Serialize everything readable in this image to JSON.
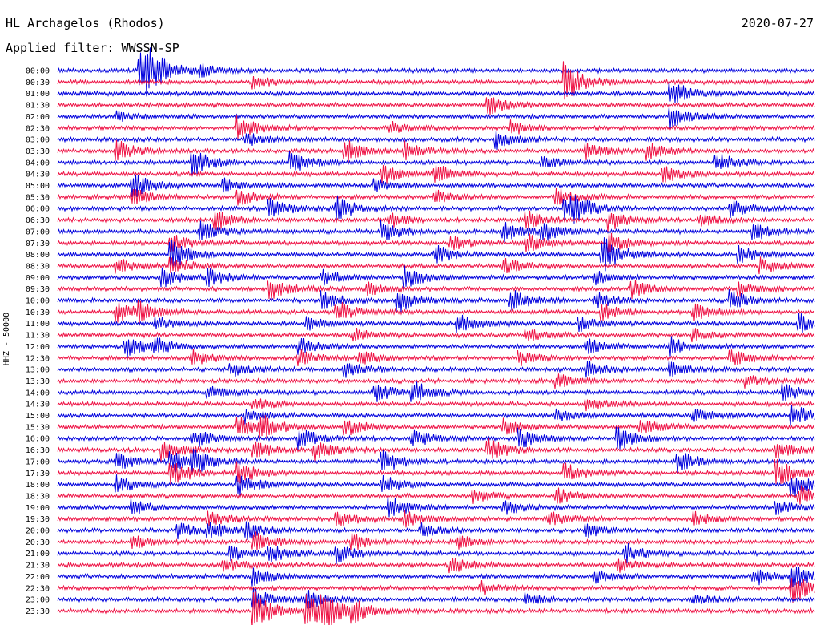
{
  "header": {
    "station": "HL Archagelos (Rhodos)",
    "date": "2020-07-27",
    "filter": "Applied filter: WWSSN-SP"
  },
  "chart_data": {
    "type": "line",
    "chart_kind": "helicorder",
    "ylabel": "HHZ - 50000",
    "colors": [
      "#0000dd",
      "#ee1144"
    ],
    "grid": false,
    "rows": [
      {
        "label": "00:00",
        "events": [
          [
            0.11,
            1.0
          ],
          [
            0.12,
            0.6
          ],
          [
            0.19,
            0.25
          ]
        ]
      },
      {
        "label": "00:30",
        "events": [
          [
            0.67,
            0.9
          ],
          [
            0.26,
            0.25
          ]
        ]
      },
      {
        "label": "01:00",
        "events": [
          [
            0.81,
            0.6
          ]
        ]
      },
      {
        "label": "01:30",
        "events": [
          [
            0.57,
            0.45
          ]
        ]
      },
      {
        "label": "02:00",
        "events": [
          [
            0.81,
            0.55
          ],
          [
            0.08,
            0.2
          ]
        ]
      },
      {
        "label": "02:30",
        "events": [
          [
            0.24,
            0.6
          ],
          [
            0.44,
            0.3
          ],
          [
            0.6,
            0.3
          ]
        ]
      },
      {
        "label": "03:00",
        "events": [
          [
            0.58,
            0.45
          ],
          [
            0.25,
            0.3
          ]
        ]
      },
      {
        "label": "03:30",
        "events": [
          [
            0.08,
            0.45
          ],
          [
            0.38,
            0.55
          ],
          [
            0.46,
            0.4
          ],
          [
            0.7,
            0.4
          ],
          [
            0.78,
            0.4
          ]
        ]
      },
      {
        "label": "04:00",
        "events": [
          [
            0.18,
            0.6
          ],
          [
            0.31,
            0.5
          ],
          [
            0.64,
            0.3
          ],
          [
            0.87,
            0.45
          ]
        ]
      },
      {
        "label": "04:30",
        "events": [
          [
            0.43,
            0.5
          ],
          [
            0.5,
            0.4
          ],
          [
            0.8,
            0.45
          ]
        ]
      },
      {
        "label": "05:00",
        "events": [
          [
            0.1,
            0.6
          ],
          [
            0.22,
            0.3
          ],
          [
            0.42,
            0.3
          ]
        ]
      },
      {
        "label": "05:30",
        "events": [
          [
            0.1,
            0.4
          ],
          [
            0.24,
            0.35
          ],
          [
            0.5,
            0.35
          ],
          [
            0.66,
            0.4
          ]
        ]
      },
      {
        "label": "06:00",
        "events": [
          [
            0.28,
            0.5
          ],
          [
            0.37,
            0.55
          ],
          [
            0.67,
            0.55
          ],
          [
            0.68,
            0.5
          ],
          [
            0.89,
            0.4
          ]
        ]
      },
      {
        "label": "06:30",
        "events": [
          [
            0.21,
            0.45
          ],
          [
            0.44,
            0.35
          ],
          [
            0.62,
            0.45
          ],
          [
            0.73,
            0.5
          ],
          [
            0.85,
            0.3
          ]
        ]
      },
      {
        "label": "07:00",
        "events": [
          [
            0.19,
            0.45
          ],
          [
            0.43,
            0.5
          ],
          [
            0.59,
            0.45
          ],
          [
            0.64,
            0.45
          ],
          [
            0.92,
            0.45
          ]
        ]
      },
      {
        "label": "07:30",
        "events": [
          [
            0.15,
            0.4
          ],
          [
            0.52,
            0.35
          ],
          [
            0.62,
            0.45
          ],
          [
            0.73,
            0.45
          ]
        ]
      },
      {
        "label": "08:00",
        "events": [
          [
            0.15,
            0.8
          ],
          [
            0.72,
            0.95
          ],
          [
            0.5,
            0.4
          ],
          [
            0.9,
            0.4
          ]
        ]
      },
      {
        "label": "08:30",
        "events": [
          [
            0.08,
            0.35
          ],
          [
            0.15,
            0.4
          ],
          [
            0.59,
            0.35
          ],
          [
            0.93,
            0.35
          ]
        ]
      },
      {
        "label": "09:00",
        "events": [
          [
            0.14,
            0.45
          ],
          [
            0.2,
            0.35
          ],
          [
            0.35,
            0.35
          ],
          [
            0.46,
            0.55
          ],
          [
            0.71,
            0.35
          ]
        ]
      },
      {
        "label": "09:30",
        "events": [
          [
            0.28,
            0.5
          ],
          [
            0.41,
            0.3
          ],
          [
            0.76,
            0.4
          ],
          [
            0.9,
            0.4
          ]
        ]
      },
      {
        "label": "10:00",
        "events": [
          [
            0.35,
            0.45
          ],
          [
            0.45,
            0.6
          ],
          [
            0.6,
            0.5
          ],
          [
            0.71,
            0.4
          ],
          [
            0.89,
            0.45
          ]
        ]
      },
      {
        "label": "10:30",
        "events": [
          [
            0.08,
            0.45
          ],
          [
            0.11,
            0.4
          ],
          [
            0.37,
            0.5
          ],
          [
            0.72,
            0.4
          ],
          [
            0.84,
            0.45
          ]
        ]
      },
      {
        "label": "11:00",
        "events": [
          [
            0.13,
            0.3
          ],
          [
            0.33,
            0.3
          ],
          [
            0.53,
            0.45
          ],
          [
            0.69,
            0.3
          ],
          [
            0.98,
            0.45
          ]
        ]
      },
      {
        "label": "11:30",
        "events": [
          [
            0.39,
            0.3
          ],
          [
            0.62,
            0.3
          ],
          [
            0.84,
            0.3
          ]
        ]
      },
      {
        "label": "12:00",
        "events": [
          [
            0.09,
            0.55
          ],
          [
            0.13,
            0.4
          ],
          [
            0.32,
            0.4
          ],
          [
            0.7,
            0.35
          ],
          [
            0.81,
            0.4
          ]
        ]
      },
      {
        "label": "12:30",
        "events": [
          [
            0.18,
            0.35
          ],
          [
            0.32,
            0.4
          ],
          [
            0.4,
            0.35
          ],
          [
            0.61,
            0.35
          ],
          [
            0.89,
            0.35
          ]
        ]
      },
      {
        "label": "13:00",
        "events": [
          [
            0.23,
            0.3
          ],
          [
            0.38,
            0.4
          ],
          [
            0.7,
            0.35
          ],
          [
            0.81,
            0.35
          ]
        ]
      },
      {
        "label": "13:30",
        "events": [
          [
            0.66,
            0.3
          ],
          [
            0.91,
            0.3
          ]
        ]
      },
      {
        "label": "14:00",
        "events": [
          [
            0.2,
            0.4
          ],
          [
            0.42,
            0.45
          ],
          [
            0.47,
            0.5
          ],
          [
            0.96,
            0.4
          ]
        ]
      },
      {
        "label": "14:30",
        "events": [
          [
            0.26,
            0.3
          ],
          [
            0.7,
            0.3
          ]
        ]
      },
      {
        "label": "15:00",
        "events": [
          [
            0.25,
            0.35
          ],
          [
            0.66,
            0.3
          ],
          [
            0.84,
            0.35
          ],
          [
            0.97,
            0.5
          ]
        ]
      },
      {
        "label": "15:30",
        "events": [
          [
            0.24,
            0.45
          ],
          [
            0.27,
            0.5
          ],
          [
            0.38,
            0.4
          ],
          [
            0.59,
            0.4
          ],
          [
            0.77,
            0.45
          ]
        ]
      },
      {
        "label": "16:00",
        "events": [
          [
            0.18,
            0.45
          ],
          [
            0.32,
            0.5
          ],
          [
            0.47,
            0.45
          ],
          [
            0.61,
            0.5
          ],
          [
            0.74,
            0.6
          ]
        ]
      },
      {
        "label": "16:30",
        "events": [
          [
            0.14,
            0.5
          ],
          [
            0.26,
            0.45
          ],
          [
            0.34,
            0.45
          ],
          [
            0.57,
            0.55
          ],
          [
            0.95,
            0.45
          ]
        ]
      },
      {
        "label": "17:00",
        "events": [
          [
            0.08,
            0.45
          ],
          [
            0.15,
            0.6
          ],
          [
            0.18,
            0.45
          ],
          [
            0.43,
            0.55
          ],
          [
            0.82,
            0.5
          ]
        ]
      },
      {
        "label": "17:30",
        "events": [
          [
            0.15,
            0.6
          ],
          [
            0.24,
            0.45
          ],
          [
            0.67,
            0.45
          ],
          [
            0.95,
            0.6
          ]
        ]
      },
      {
        "label": "18:00",
        "events": [
          [
            0.08,
            0.4
          ],
          [
            0.24,
            0.5
          ],
          [
            0.43,
            0.45
          ],
          [
            0.97,
            0.6
          ]
        ]
      },
      {
        "label": "18:30",
        "events": [
          [
            0.55,
            0.35
          ],
          [
            0.66,
            0.35
          ],
          [
            0.98,
            0.5
          ]
        ]
      },
      {
        "label": "19:00",
        "events": [
          [
            0.1,
            0.35
          ],
          [
            0.44,
            0.55
          ],
          [
            0.59,
            0.35
          ],
          [
            0.95,
            0.35
          ]
        ]
      },
      {
        "label": "19:30",
        "events": [
          [
            0.2,
            0.35
          ],
          [
            0.37,
            0.4
          ],
          [
            0.46,
            0.35
          ],
          [
            0.65,
            0.35
          ],
          [
            0.84,
            0.35
          ]
        ]
      },
      {
        "label": "20:00",
        "events": [
          [
            0.16,
            0.35
          ],
          [
            0.2,
            0.4
          ],
          [
            0.25,
            0.35
          ],
          [
            0.48,
            0.3
          ],
          [
            0.7,
            0.3
          ]
        ]
      },
      {
        "label": "20:30",
        "events": [
          [
            0.1,
            0.35
          ],
          [
            0.26,
            0.45
          ],
          [
            0.39,
            0.35
          ],
          [
            0.53,
            0.3
          ]
        ]
      },
      {
        "label": "21:00",
        "events": [
          [
            0.23,
            0.35
          ],
          [
            0.28,
            0.45
          ],
          [
            0.37,
            0.45
          ],
          [
            0.75,
            0.45
          ]
        ]
      },
      {
        "label": "21:30",
        "events": [
          [
            0.22,
            0.3
          ],
          [
            0.52,
            0.35
          ],
          [
            0.74,
            0.3
          ]
        ]
      },
      {
        "label": "22:00",
        "events": [
          [
            0.26,
            0.4
          ],
          [
            0.71,
            0.35
          ],
          [
            0.92,
            0.4
          ],
          [
            0.97,
            0.55
          ]
        ]
      },
      {
        "label": "22:30",
        "events": [
          [
            0.97,
            0.75
          ],
          [
            0.56,
            0.3
          ]
        ]
      },
      {
        "label": "23:00",
        "events": [
          [
            0.26,
            0.55
          ],
          [
            0.33,
            0.4
          ],
          [
            0.62,
            0.3
          ],
          [
            0.84,
            0.3
          ]
        ]
      },
      {
        "label": "23:30",
        "events": [
          [
            0.26,
            0.95
          ],
          [
            0.33,
            0.8
          ],
          [
            0.35,
            0.7
          ],
          [
            0.39,
            0.45
          ]
        ]
      }
    ]
  }
}
